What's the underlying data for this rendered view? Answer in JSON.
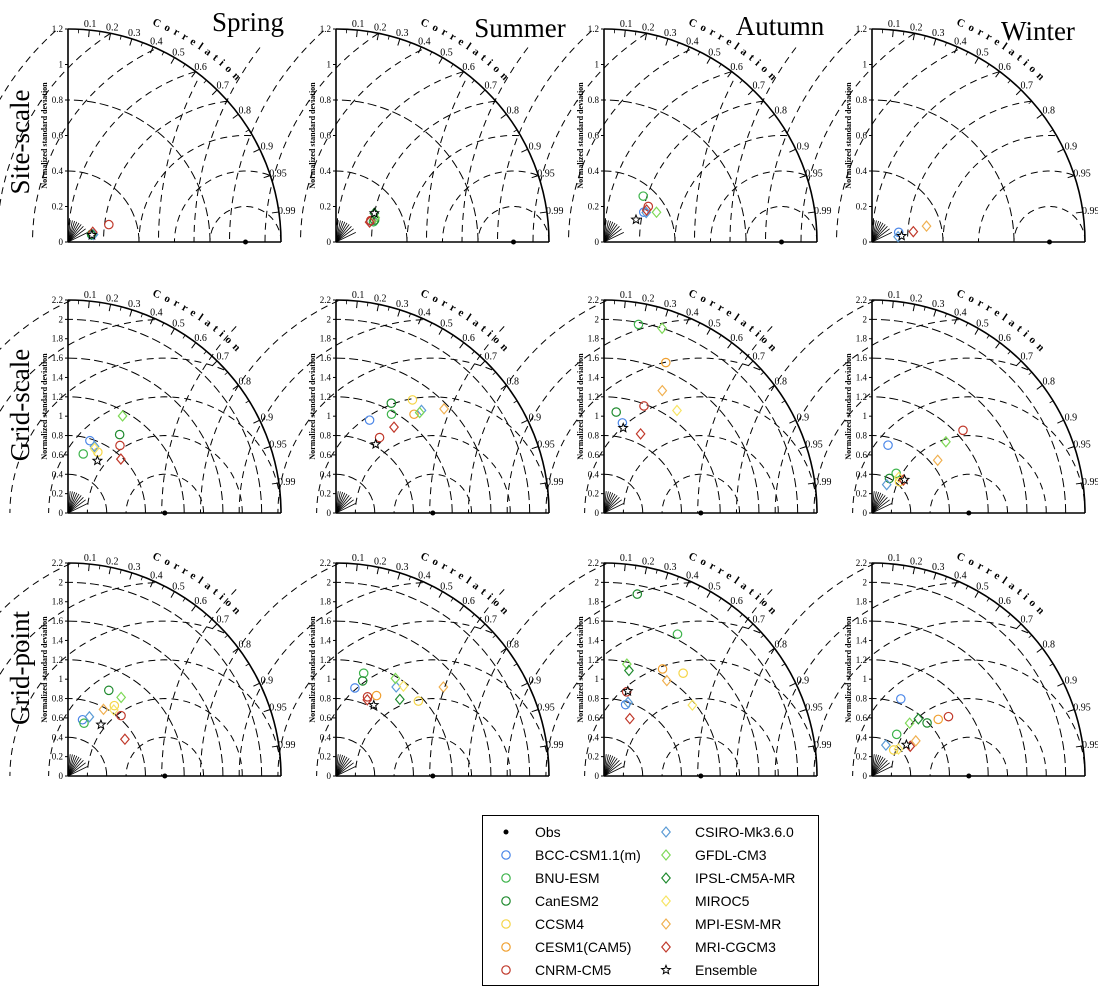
{
  "figure": {
    "seasons": [
      "Spring",
      "Summer",
      "Autumn",
      "Winter"
    ],
    "rows": [
      "Site-scale",
      "Grid-scale",
      "Grid-point"
    ],
    "ylabel": "Normalized standard deviation",
    "corr_word": "C o r r e l a t i o n",
    "corr_ticks": [
      "0.1",
      "0.2",
      "0.3",
      "0.4",
      "0.5",
      "0.6",
      "0.7",
      "0.8",
      "0.9",
      "0.95",
      "0.99"
    ],
    "site_sd_ticks": [
      "0",
      "0.2",
      "0.4",
      "0.6",
      "0.8",
      "1",
      "1.2"
    ],
    "grid_sd_ticks": [
      "0",
      "0.2",
      "0.4",
      "0.6",
      "0.8",
      "1",
      "1.2",
      "1.4",
      "1.6",
      "1.8",
      "2",
      "2.2"
    ]
  },
  "legend": {
    "items": [
      {
        "label": "Obs",
        "marker": "dot",
        "color": "#000000"
      },
      {
        "label": "BCC-CSM1.1(m)",
        "marker": "circle",
        "color": "#4a86e8"
      },
      {
        "label": "BNU-ESM",
        "marker": "circle",
        "color": "#3cb34a"
      },
      {
        "label": "CanESM2",
        "marker": "circle",
        "color": "#1f8a2e"
      },
      {
        "label": "CCSM4",
        "marker": "circle",
        "color": "#f5d547"
      },
      {
        "label": "CESM1(CAM5)",
        "marker": "circle",
        "color": "#f0a030"
      },
      {
        "label": "CNRM-CM5",
        "marker": "circle",
        "color": "#c0392b"
      },
      {
        "label": "CSIRO-Mk3.6.0",
        "marker": "diamond",
        "color": "#5b9bd5"
      },
      {
        "label": "GFDL-CM3",
        "marker": "diamond",
        "color": "#7ed957"
      },
      {
        "label": "IPSL-CM5A-MR",
        "marker": "diamond",
        "color": "#1f8a2e"
      },
      {
        "label": "MIROC5",
        "marker": "diamond",
        "color": "#f7e463"
      },
      {
        "label": "MPI-ESM-MR",
        "marker": "diamond",
        "color": "#f0b050"
      },
      {
        "label": "MRI-CGCM3",
        "marker": "diamond",
        "color": "#c0392b"
      },
      {
        "label": "Ensemble",
        "marker": "star",
        "color": "#000000"
      }
    ]
  },
  "chart_data": [
    {
      "type": "scatter",
      "row": "Site-scale",
      "season": "Spring",
      "ylim": [
        0,
        1.2
      ],
      "points": [
        {
          "series": "Obs",
          "sd": 1.0,
          "corr": 1.0
        },
        {
          "series": "BCC-CSM1.1(m)",
          "sd": 0.14,
          "corr": 0.96
        },
        {
          "series": "BNU-ESM",
          "sd": 0.14,
          "corr": 0.95
        },
        {
          "series": "CanESM2",
          "sd": 0.14,
          "corr": 0.95
        },
        {
          "series": "CNRM-CM5",
          "sd": 0.25,
          "corr": 0.92
        },
        {
          "series": "CSIRO-Mk3.6.0",
          "sd": 0.15,
          "corr": 0.96
        },
        {
          "series": "IPSL-CM5A-MR",
          "sd": 0.14,
          "corr": 0.95
        },
        {
          "series": "MRI-CGCM3",
          "sd": 0.15,
          "corr": 0.93
        },
        {
          "series": "Ensemble",
          "sd": 0.14,
          "corr": 0.96
        }
      ]
    },
    {
      "type": "scatter",
      "row": "Site-scale",
      "season": "Summer",
      "ylim": [
        0,
        1.2
      ],
      "points": [
        {
          "series": "Obs",
          "sd": 1.0,
          "corr": 1.0
        },
        {
          "series": "BCC-CSM1.1(m)",
          "sd": 0.23,
          "corr": 0.86
        },
        {
          "series": "BNU-ESM",
          "sd": 0.24,
          "corr": 0.88
        },
        {
          "series": "CanESM2",
          "sd": 0.25,
          "corr": 0.87
        },
        {
          "series": "CNRM-CM5",
          "sd": 0.23,
          "corr": 0.85
        },
        {
          "series": "GFDL-CM3",
          "sd": 0.26,
          "corr": 0.85
        },
        {
          "series": "IPSL-CM5A-MR",
          "sd": 0.27,
          "corr": 0.8
        },
        {
          "series": "MRI-CGCM3",
          "sd": 0.22,
          "corr": 0.86
        },
        {
          "series": "Ensemble",
          "sd": 0.27,
          "corr": 0.8
        }
      ]
    },
    {
      "type": "scatter",
      "row": "Site-scale",
      "season": "Autumn",
      "ylim": [
        0,
        1.2
      ],
      "points": [
        {
          "series": "Obs",
          "sd": 1.0,
          "corr": 1.0
        },
        {
          "series": "BCC-CSM1.1(m)",
          "sd": 0.28,
          "corr": 0.8
        },
        {
          "series": "BNU-ESM",
          "sd": 0.34,
          "corr": 0.65
        },
        {
          "series": "CNRM-CM5",
          "sd": 0.32,
          "corr": 0.78
        },
        {
          "series": "CSIRO-Mk3.6.0",
          "sd": 0.29,
          "corr": 0.82
        },
        {
          "series": "GFDL-CM3",
          "sd": 0.34,
          "corr": 0.87
        },
        {
          "series": "MRI-CGCM3",
          "sd": 0.3,
          "corr": 0.8
        },
        {
          "series": "Ensemble",
          "sd": 0.22,
          "corr": 0.82
        }
      ]
    },
    {
      "type": "scatter",
      "row": "Site-scale",
      "season": "Winter",
      "ylim": [
        0,
        1.2
      ],
      "points": [
        {
          "series": "Obs",
          "sd": 1.0,
          "corr": 1.0
        },
        {
          "series": "BCC-CSM1.1(m)",
          "sd": 0.16,
          "corr": 0.94
        },
        {
          "series": "CSIRO-Mk3.6.0",
          "sd": 0.15,
          "corr": 0.98
        },
        {
          "series": "MPI-ESM-MR",
          "sd": 0.32,
          "corr": 0.96
        },
        {
          "series": "MRI-CGCM3",
          "sd": 0.24,
          "corr": 0.97
        },
        {
          "series": "Ensemble",
          "sd": 0.17,
          "corr": 0.98
        }
      ]
    },
    {
      "type": "scatter",
      "row": "Grid-scale",
      "season": "Spring",
      "ylim": [
        0,
        2.2
      ],
      "points": [
        {
          "series": "Obs",
          "sd": 1.0,
          "corr": 1.0
        },
        {
          "series": "BCC-CSM1.1(m)",
          "sd": 0.78,
          "corr": 0.29
        },
        {
          "series": "BNU-ESM",
          "sd": 0.63,
          "corr": 0.25
        },
        {
          "series": "CanESM2",
          "sd": 0.97,
          "corr": 0.55
        },
        {
          "series": "CCSM4",
          "sd": 0.7,
          "corr": 0.44
        },
        {
          "series": "CNRM-CM5",
          "sd": 0.88,
          "corr": 0.61
        },
        {
          "series": "CSIRO-Mk3.6.0",
          "sd": 0.74,
          "corr": 0.37
        },
        {
          "series": "GFDL-CM3",
          "sd": 1.15,
          "corr": 0.49
        },
        {
          "series": "MIROC5",
          "sd": 0.72,
          "corr": 0.38
        },
        {
          "series": "MRI-CGCM3",
          "sd": 0.78,
          "corr": 0.7
        },
        {
          "series": "Ensemble",
          "sd": 0.62,
          "corr": 0.49
        }
      ]
    },
    {
      "type": "scatter",
      "row": "Grid-scale",
      "season": "Summer",
      "ylim": [
        0,
        2.2
      ],
      "points": [
        {
          "series": "Obs",
          "sd": 1.0,
          "corr": 1.0
        },
        {
          "series": "BCC-CSM1.1(m)",
          "sd": 1.02,
          "corr": 0.34
        },
        {
          "series": "BNU-ESM",
          "sd": 1.17,
          "corr": 0.49
        },
        {
          "series": "CanESM2",
          "sd": 1.27,
          "corr": 0.45
        },
        {
          "series": "CCSM4",
          "sd": 1.41,
          "corr": 0.56
        },
        {
          "series": "CESM1(CAM5)",
          "sd": 1.3,
          "corr": 0.62
        },
        {
          "series": "CNRM-CM5",
          "sd": 0.9,
          "corr": 0.5
        },
        {
          "series": "CSIRO-Mk3.6.0",
          "sd": 1.38,
          "corr": 0.64
        },
        {
          "series": "GFDL-CM3",
          "sd": 1.35,
          "corr": 0.64
        },
        {
          "series": "MPI-ESM-MR",
          "sd": 1.55,
          "corr": 0.72
        },
        {
          "series": "MRI-CGCM3",
          "sd": 1.07,
          "corr": 0.56
        },
        {
          "series": "Ensemble",
          "sd": 0.82,
          "corr": 0.5
        }
      ]
    },
    {
      "type": "scatter",
      "row": "Grid-scale",
      "season": "Autumn",
      "ylim": [
        0,
        2.2
      ],
      "points": [
        {
          "series": "Obs",
          "sd": 1.0,
          "corr": 1.0
        },
        {
          "series": "BCC-CSM1.1(m)",
          "sd": 0.95,
          "corr": 0.2
        },
        {
          "series": "BNU-ESM",
          "sd": 1.98,
          "corr": 0.18
        },
        {
          "series": "CanESM2",
          "sd": 1.05,
          "corr": 0.12
        },
        {
          "series": "CESM1(CAM5)",
          "sd": 1.68,
          "corr": 0.38
        },
        {
          "series": "CNRM-CM5",
          "sd": 1.18,
          "corr": 0.35
        },
        {
          "series": "GFDL-CM3",
          "sd": 2.0,
          "corr": 0.3
        },
        {
          "series": "MIROC5",
          "sd": 1.3,
          "corr": 0.58
        },
        {
          "series": "MPI-ESM-MR",
          "sd": 1.4,
          "corr": 0.43
        },
        {
          "series": "MRI-CGCM3",
          "sd": 0.9,
          "corr": 0.42
        },
        {
          "series": "Ensemble",
          "sd": 0.9,
          "corr": 0.22
        }
      ]
    },
    {
      "type": "scatter",
      "row": "Grid-scale",
      "season": "Winter",
      "ylim": [
        0,
        2.2
      ],
      "points": [
        {
          "series": "Obs",
          "sd": 1.0,
          "corr": 1.0
        },
        {
          "series": "BCC-CSM1.1(m)",
          "sd": 0.72,
          "corr": 0.23
        },
        {
          "series": "BNU-ESM",
          "sd": 0.48,
          "corr": 0.52
        },
        {
          "series": "CanESM2",
          "sd": 0.4,
          "corr": 0.45
        },
        {
          "series": "CCSM4",
          "sd": 0.43,
          "corr": 0.66
        },
        {
          "series": "CNRM-CM5",
          "sd": 1.27,
          "corr": 0.74
        },
        {
          "series": "CSIRO-Mk3.6.0",
          "sd": 0.33,
          "corr": 0.46
        },
        {
          "series": "GFDL-CM3",
          "sd": 1.06,
          "corr": 0.72
        },
        {
          "series": "MIROC5",
          "sd": 0.46,
          "corr": 0.6
        },
        {
          "series": "MPI-ESM-MR",
          "sd": 0.87,
          "corr": 0.78
        },
        {
          "series": "MRI-CGCM3",
          "sd": 0.47,
          "corr": 0.69
        },
        {
          "series": "Ensemble",
          "sd": 0.48,
          "corr": 0.7
        }
      ]
    },
    {
      "type": "scatter",
      "row": "Grid-point",
      "season": "Spring",
      "ylim": [
        0,
        2.2
      ],
      "points": [
        {
          "series": "Obs",
          "sd": 1.0,
          "corr": 1.0
        },
        {
          "series": "BCC-CSM1.1(m)",
          "sd": 0.6,
          "corr": 0.25
        },
        {
          "series": "BNU-ESM",
          "sd": 0.57,
          "corr": 0.29
        },
        {
          "series": "CanESM2",
          "sd": 0.98,
          "corr": 0.43
        },
        {
          "series": "CCSM4",
          "sd": 0.87,
          "corr": 0.55
        },
        {
          "series": "CNRM-CM5",
          "sd": 0.83,
          "corr": 0.66
        },
        {
          "series": "CSIRO-Mk3.6.0",
          "sd": 0.65,
          "corr": 0.34
        },
        {
          "series": "GFDL-CM3",
          "sd": 0.98,
          "corr": 0.56
        },
        {
          "series": "MIROC5",
          "sd": 0.83,
          "corr": 0.57
        },
        {
          "series": "MPI-ESM-MR",
          "sd": 0.78,
          "corr": 0.47
        },
        {
          "series": "MRI-CGCM3",
          "sd": 0.7,
          "corr": 0.84
        },
        {
          "series": "Ensemble",
          "sd": 0.63,
          "corr": 0.54
        }
      ]
    },
    {
      "type": "scatter",
      "row": "Grid-point",
      "season": "Summer",
      "ylim": [
        0,
        2.2
      ],
      "points": [
        {
          "series": "Obs",
          "sd": 1.0,
          "corr": 1.0
        },
        {
          "series": "BCC-CSM1.1(m)",
          "sd": 0.93,
          "corr": 0.21
        },
        {
          "series": "BNU-ESM",
          "sd": 1.1,
          "corr": 0.26
        },
        {
          "series": "CanESM2",
          "sd": 1.02,
          "corr": 0.27
        },
        {
          "series": "CCSM4",
          "sd": 1.15,
          "corr": 0.74
        },
        {
          "series": "CESM1(CAM5)",
          "sd": 0.93,
          "corr": 0.45
        },
        {
          "series": "CNRM-CM5",
          "sd": 0.88,
          "corr": 0.37
        },
        {
          "series": "CSIRO-Mk3.6.0",
          "sd": 1.11,
          "corr": 0.56
        },
        {
          "series": "GFDL-CM3",
          "sd": 1.18,
          "corr": 0.52
        },
        {
          "series": "IPSL-CM5A-MR",
          "sd": 1.03,
          "corr": 0.64
        },
        {
          "series": "MIROC5",
          "sd": 1.16,
          "corr": 0.6
        },
        {
          "series": "MPI-ESM-MR",
          "sd": 1.44,
          "corr": 0.77
        },
        {
          "series": "MRI-CGCM3",
          "sd": 0.85,
          "corr": 0.38
        },
        {
          "series": "Ensemble",
          "sd": 0.83,
          "corr": 0.47
        }
      ]
    },
    {
      "type": "scatter",
      "row": "Grid-point",
      "season": "Autumn",
      "ylim": [
        0,
        2.2
      ],
      "points": [
        {
          "series": "Obs",
          "sd": 1.0,
          "corr": 1.0
        },
        {
          "series": "BCC-CSM1.1(m)",
          "sd": 0.77,
          "corr": 0.29
        },
        {
          "series": "BNU-ESM",
          "sd": 1.65,
          "corr": 0.46
        },
        {
          "series": "CanESM2",
          "sd": 1.91,
          "corr": 0.18
        },
        {
          "series": "CCSM4",
          "sd": 1.34,
          "corr": 0.61
        },
        {
          "series": "CESM1(CAM5)",
          "sd": 1.26,
          "corr": 0.48
        },
        {
          "series": "CNRM-CM5",
          "sd": 0.9,
          "corr": 0.26
        },
        {
          "series": "CSIRO-Mk3.6.0",
          "sd": 0.8,
          "corr": 0.31
        },
        {
          "series": "GFDL-CM3",
          "sd": 1.18,
          "corr": 0.2
        },
        {
          "series": "IPSL-CM5A-MR",
          "sd": 1.12,
          "corr": 0.23
        },
        {
          "series": "MIROC5",
          "sd": 1.17,
          "corr": 0.78
        },
        {
          "series": "MPI-ESM-MR",
          "sd": 1.18,
          "corr": 0.55
        },
        {
          "series": "MRI-CGCM3",
          "sd": 0.65,
          "corr": 0.41
        },
        {
          "series": "Ensemble",
          "sd": 0.91,
          "corr": 0.27
        }
      ]
    },
    {
      "type": "scatter",
      "row": "Grid-point",
      "season": "Winter",
      "ylim": [
        0,
        2.2
      ],
      "points": [
        {
          "series": "Obs",
          "sd": 1.0,
          "corr": 1.0
        },
        {
          "series": "BCC-CSM1.1(m)",
          "sd": 0.85,
          "corr": 0.35
        },
        {
          "series": "BNU-ESM",
          "sd": 0.5,
          "corr": 0.51
        },
        {
          "series": "CanESM2",
          "sd": 0.79,
          "corr": 0.72
        },
        {
          "series": "CCSM4",
          "sd": 0.35,
          "corr": 0.64
        },
        {
          "series": "CESM1(CAM5)",
          "sd": 0.9,
          "corr": 0.76
        },
        {
          "series": "CNRM-CM5",
          "sd": 1.0,
          "corr": 0.79
        },
        {
          "series": "CSIRO-Mk3.6.0",
          "sd": 0.35,
          "corr": 0.41
        },
        {
          "series": "GFDL-CM3",
          "sd": 0.67,
          "corr": 0.58
        },
        {
          "series": "IPSL-CM5A-MR",
          "sd": 0.76,
          "corr": 0.63
        },
        {
          "series": "MIROC5",
          "sd": 0.39,
          "corr": 0.7
        },
        {
          "series": "MPI-ESM-MR",
          "sd": 0.58,
          "corr": 0.78
        },
        {
          "series": "MRI-CGCM3",
          "sd": 0.5,
          "corr": 0.79
        },
        {
          "series": "Ensemble",
          "sd": 0.48,
          "corr": 0.74
        }
      ]
    }
  ]
}
